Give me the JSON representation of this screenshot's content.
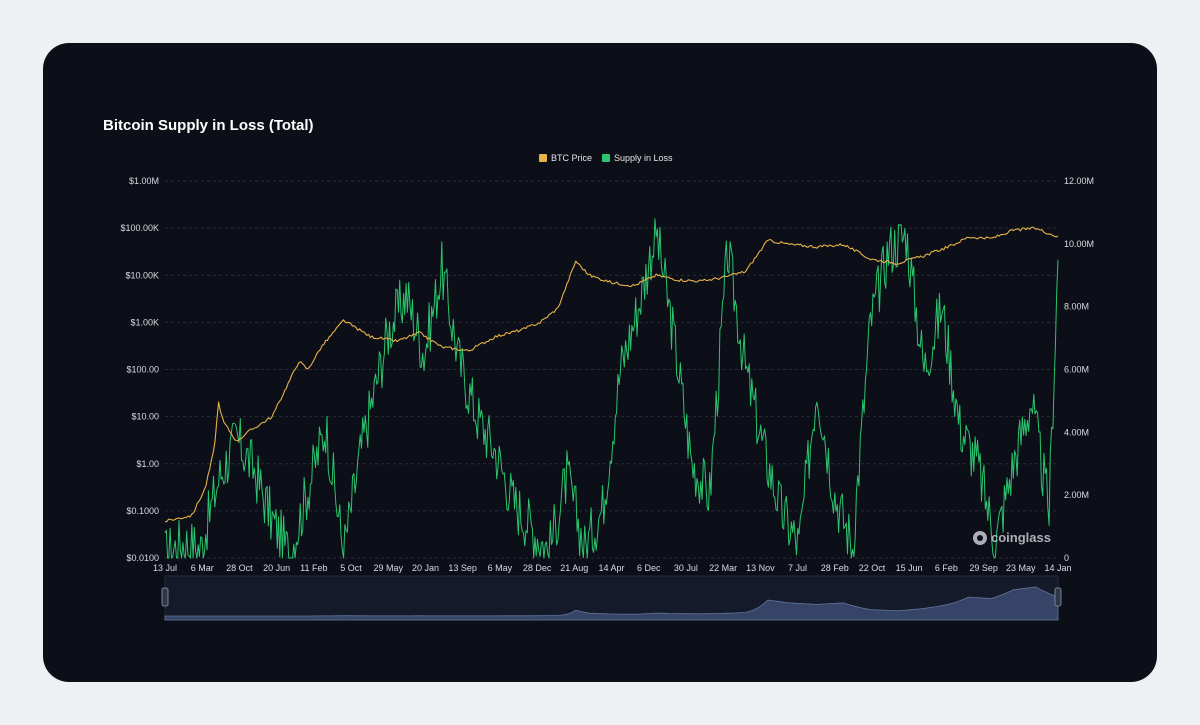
{
  "card": {
    "title": "Bitcoin Supply in Loss (Total)",
    "watermark": "coinglass"
  },
  "chart_data": {
    "type": "line",
    "title": "Bitcoin Supply in Loss (Total)",
    "legend_position": "top-center",
    "grid": true,
    "x_ticks": [
      "13 Jul",
      "6 Mar",
      "28 Oct",
      "20 Jun",
      "11 Feb",
      "5 Oct",
      "29 May",
      "20 Jan",
      "13 Sep",
      "6 May",
      "28 Dec",
      "21 Aug",
      "14 Apr",
      "6 Dec",
      "30 Jul",
      "22 Mar",
      "13 Nov",
      "7 Jul",
      "28 Feb",
      "22 Oct",
      "15 Jun",
      "6 Feb",
      "29 Sep",
      "23 May",
      "14 Jan"
    ],
    "y_left": {
      "scale": "log",
      "ticks": [
        "$0.0100",
        "$0.1000",
        "$1.00",
        "$10.00",
        "$100.00",
        "$1.00K",
        "$10.00K",
        "$100.00K",
        "$1.00M"
      ],
      "range": [
        0.01,
        1000000
      ]
    },
    "y_right": {
      "scale": "linear",
      "ticks": [
        "0",
        "2.00M",
        "4.00M",
        "6.00M",
        "8.00M",
        "10.00M",
        "12.00M"
      ],
      "range": [
        0,
        12000000
      ]
    },
    "series": [
      {
        "name": "BTC Price",
        "axis": "left",
        "color": "#e7b14a",
        "points": [
          [
            0,
            0.06
          ],
          [
            0.03,
            0.08
          ],
          [
            0.045,
            0.3
          ],
          [
            0.055,
            2
          ],
          [
            0.06,
            20
          ],
          [
            0.065,
            8
          ],
          [
            0.08,
            3
          ],
          [
            0.095,
            5
          ],
          [
            0.12,
            10
          ],
          [
            0.15,
            150
          ],
          [
            0.16,
            100
          ],
          [
            0.175,
            300
          ],
          [
            0.2,
            1100
          ],
          [
            0.23,
            500
          ],
          [
            0.26,
            400
          ],
          [
            0.285,
            600
          ],
          [
            0.31,
            300
          ],
          [
            0.34,
            250
          ],
          [
            0.37,
            500
          ],
          [
            0.4,
            700
          ],
          [
            0.42,
            1000
          ],
          [
            0.44,
            2000
          ],
          [
            0.46,
            20000
          ],
          [
            0.475,
            10000
          ],
          [
            0.5,
            7000
          ],
          [
            0.525,
            6000
          ],
          [
            0.55,
            10000
          ],
          [
            0.575,
            8000
          ],
          [
            0.6,
            7500
          ],
          [
            0.625,
            9000
          ],
          [
            0.65,
            12000
          ],
          [
            0.675,
            55000
          ],
          [
            0.7,
            45000
          ],
          [
            0.73,
            40000
          ],
          [
            0.76,
            45000
          ],
          [
            0.79,
            22000
          ],
          [
            0.82,
            18000
          ],
          [
            0.85,
            26000
          ],
          [
            0.88,
            42000
          ],
          [
            0.9,
            65000
          ],
          [
            0.925,
            60000
          ],
          [
            0.95,
            90000
          ],
          [
            0.975,
            100000
          ],
          [
            1,
            65000
          ]
        ]
      },
      {
        "name": "Supply in Loss",
        "axis": "right",
        "color": "#2bc46f",
        "points": [
          [
            0,
            0.1
          ],
          [
            0.02,
            0.5
          ],
          [
            0.04,
            0.3
          ],
          [
            0.06,
            2.5
          ],
          [
            0.08,
            3.8
          ],
          [
            0.1,
            2.8
          ],
          [
            0.12,
            1.2
          ],
          [
            0.14,
            0.1
          ],
          [
            0.16,
            2.2
          ],
          [
            0.18,
            4.2
          ],
          [
            0.2,
            0.2
          ],
          [
            0.22,
            3.5
          ],
          [
            0.25,
            7.2
          ],
          [
            0.27,
            8.4
          ],
          [
            0.29,
            6.5
          ],
          [
            0.31,
            9.2
          ],
          [
            0.33,
            6.2
          ],
          [
            0.35,
            4.5
          ],
          [
            0.37,
            3.4
          ],
          [
            0.39,
            1.8
          ],
          [
            0.41,
            1
          ],
          [
            0.43,
            0.2
          ],
          [
            0.45,
            2.6
          ],
          [
            0.47,
            0.3
          ],
          [
            0.49,
            1.6
          ],
          [
            0.51,
            6
          ],
          [
            0.53,
            8
          ],
          [
            0.55,
            10.4
          ],
          [
            0.57,
            7
          ],
          [
            0.59,
            3
          ],
          [
            0.61,
            2
          ],
          [
            0.63,
            9.8
          ],
          [
            0.65,
            6
          ],
          [
            0.67,
            3.5
          ],
          [
            0.69,
            1.5
          ],
          [
            0.71,
            0.4
          ],
          [
            0.73,
            5.5
          ],
          [
            0.75,
            2
          ],
          [
            0.77,
            0.4
          ],
          [
            0.79,
            7.5
          ],
          [
            0.81,
            9.8
          ],
          [
            0.83,
            10.3
          ],
          [
            0.85,
            6
          ],
          [
            0.87,
            8
          ],
          [
            0.89,
            4.2
          ],
          [
            0.91,
            3
          ],
          [
            0.93,
            0.5
          ],
          [
            0.95,
            3
          ],
          [
            0.97,
            5
          ],
          [
            0.99,
            1.5
          ],
          [
            1.0,
            9.5
          ]
        ]
      }
    ]
  }
}
